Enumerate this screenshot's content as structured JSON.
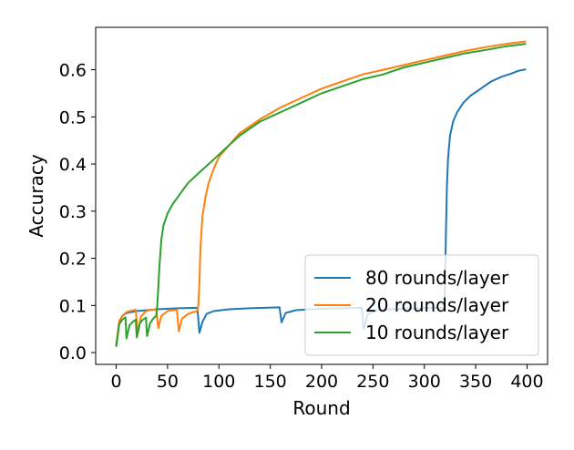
{
  "chart_data": {
    "type": "line",
    "title": "",
    "xlabel": "Round",
    "ylabel": "Accuracy",
    "xlim": [
      -20,
      420
    ],
    "ylim": [
      -0.025,
      0.69
    ],
    "xticks": [
      0,
      50,
      100,
      150,
      200,
      250,
      300,
      350,
      400
    ],
    "yticks": [
      0.0,
      0.1,
      0.2,
      0.3,
      0.4,
      0.5,
      0.6
    ],
    "ytick_labels": [
      "0.0",
      "0.1",
      "0.2",
      "0.3",
      "0.4",
      "0.5",
      "0.6"
    ],
    "grid": false,
    "legend_position": "lower-right",
    "series": [
      {
        "name": "80 rounds/layer",
        "color": "#1f77b4",
        "points": [
          [
            0,
            0.015
          ],
          [
            3,
            0.065
          ],
          [
            6,
            0.078
          ],
          [
            10,
            0.084
          ],
          [
            20,
            0.088
          ],
          [
            40,
            0.092
          ],
          [
            60,
            0.094
          ],
          [
            79,
            0.095
          ],
          [
            81,
            0.042
          ],
          [
            84,
            0.065
          ],
          [
            88,
            0.082
          ],
          [
            95,
            0.088
          ],
          [
            110,
            0.092
          ],
          [
            130,
            0.094
          ],
          [
            159,
            0.096
          ],
          [
            161,
            0.064
          ],
          [
            165,
            0.084
          ],
          [
            175,
            0.09
          ],
          [
            200,
            0.093
          ],
          [
            239,
            0.095
          ],
          [
            241,
            0.05
          ],
          [
            245,
            0.082
          ],
          [
            255,
            0.09
          ],
          [
            280,
            0.093
          ],
          [
            319,
            0.095
          ],
          [
            320,
            0.13
          ],
          [
            321,
            0.25
          ],
          [
            322,
            0.35
          ],
          [
            323,
            0.41
          ],
          [
            325,
            0.46
          ],
          [
            328,
            0.49
          ],
          [
            332,
            0.51
          ],
          [
            338,
            0.53
          ],
          [
            345,
            0.545
          ],
          [
            355,
            0.56
          ],
          [
            365,
            0.575
          ],
          [
            375,
            0.585
          ],
          [
            385,
            0.592
          ],
          [
            392,
            0.598
          ],
          [
            399,
            0.601
          ]
        ]
      },
      {
        "name": "20 rounds/layer",
        "color": "#ff7f0e",
        "points": [
          [
            0,
            0.015
          ],
          [
            3,
            0.068
          ],
          [
            7,
            0.08
          ],
          [
            10,
            0.086
          ],
          [
            15,
            0.089
          ],
          [
            19,
            0.091
          ],
          [
            21,
            0.04
          ],
          [
            24,
            0.076
          ],
          [
            29,
            0.088
          ],
          [
            35,
            0.091
          ],
          [
            39,
            0.092
          ],
          [
            41,
            0.052
          ],
          [
            44,
            0.078
          ],
          [
            50,
            0.088
          ],
          [
            55,
            0.09
          ],
          [
            59,
            0.091
          ],
          [
            61,
            0.045
          ],
          [
            64,
            0.072
          ],
          [
            70,
            0.082
          ],
          [
            75,
            0.086
          ],
          [
            79,
            0.088
          ],
          [
            80,
            0.1
          ],
          [
            81,
            0.15
          ],
          [
            82,
            0.22
          ],
          [
            84,
            0.29
          ],
          [
            87,
            0.33
          ],
          [
            90,
            0.36
          ],
          [
            95,
            0.39
          ],
          [
            100,
            0.415
          ],
          [
            110,
            0.44
          ],
          [
            120,
            0.465
          ],
          [
            140,
            0.495
          ],
          [
            160,
            0.52
          ],
          [
            180,
            0.54
          ],
          [
            200,
            0.56
          ],
          [
            220,
            0.575
          ],
          [
            240,
            0.59
          ],
          [
            260,
            0.6
          ],
          [
            280,
            0.61
          ],
          [
            300,
            0.62
          ],
          [
            320,
            0.63
          ],
          [
            340,
            0.64
          ],
          [
            360,
            0.648
          ],
          [
            380,
            0.655
          ],
          [
            399,
            0.66
          ]
        ]
      },
      {
        "name": "10 rounds/layer",
        "color": "#2ca02c",
        "points": [
          [
            0,
            0.012
          ],
          [
            3,
            0.06
          ],
          [
            6,
            0.07
          ],
          [
            9,
            0.075
          ],
          [
            10,
            0.03
          ],
          [
            13,
            0.058
          ],
          [
            16,
            0.065
          ],
          [
            19,
            0.07
          ],
          [
            20,
            0.032
          ],
          [
            23,
            0.062
          ],
          [
            26,
            0.07
          ],
          [
            29,
            0.074
          ],
          [
            30,
            0.035
          ],
          [
            33,
            0.062
          ],
          [
            36,
            0.072
          ],
          [
            39,
            0.078
          ],
          [
            40,
            0.1
          ],
          [
            41,
            0.14
          ],
          [
            42,
            0.18
          ],
          [
            44,
            0.24
          ],
          [
            46,
            0.27
          ],
          [
            50,
            0.295
          ],
          [
            55,
            0.315
          ],
          [
            60,
            0.33
          ],
          [
            65,
            0.345
          ],
          [
            70,
            0.36
          ],
          [
            80,
            0.38
          ],
          [
            90,
            0.4
          ],
          [
            100,
            0.42
          ],
          [
            110,
            0.44
          ],
          [
            120,
            0.46
          ],
          [
            140,
            0.49
          ],
          [
            160,
            0.51
          ],
          [
            180,
            0.53
          ],
          [
            200,
            0.55
          ],
          [
            220,
            0.565
          ],
          [
            240,
            0.58
          ],
          [
            260,
            0.59
          ],
          [
            280,
            0.605
          ],
          [
            300,
            0.615
          ],
          [
            320,
            0.625
          ],
          [
            340,
            0.635
          ],
          [
            360,
            0.642
          ],
          [
            380,
            0.65
          ],
          [
            399,
            0.655
          ]
        ]
      }
    ]
  }
}
